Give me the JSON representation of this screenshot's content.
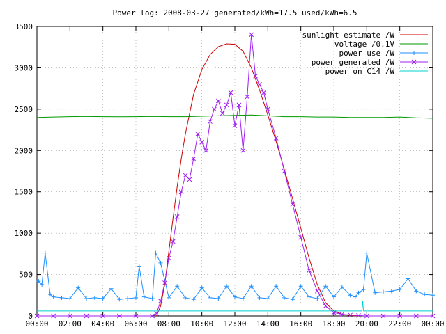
{
  "colors": {
    "sunlight": "#cc0000",
    "voltage": "#009900",
    "power_use": "#1e8fff",
    "power_generated": "#a020f0",
    "power_c14": "#00d0d0",
    "grid": "#a0a0a0"
  },
  "chart_data": {
    "type": "line",
    "title": "Power log: 2008-03-27 generated/kWh=17.5 used/kWh=6.5",
    "xlabel": "",
    "ylabel": "",
    "xlim_hours": [
      0,
      24
    ],
    "ylim": [
      0,
      3500
    ],
    "x_tick_labels": [
      "00:00",
      "02:00",
      "04:00",
      "06:00",
      "08:00",
      "10:00",
      "12:00",
      "14:00",
      "16:00",
      "18:00",
      "20:00",
      "22:00",
      "00:00"
    ],
    "y_tick_labels": [
      "0",
      "500",
      "1000",
      "1500",
      "2000",
      "2500",
      "3000",
      "3500"
    ],
    "y_tick_values": [
      0,
      500,
      1000,
      1500,
      2000,
      2500,
      3000,
      3500
    ],
    "grid": true,
    "legend_position": "top-right",
    "series": [
      {
        "name": "sunlight estimate /W",
        "color_key": "sunlight",
        "marker": "none",
        "x": [
          7.25,
          7.5,
          7.75,
          8.0,
          8.25,
          8.5,
          8.75,
          9.0,
          9.5,
          10.0,
          10.5,
          11.0,
          11.5,
          12.0,
          12.5,
          13.0,
          13.5,
          14.0,
          14.5,
          15.0,
          15.5,
          16.0,
          16.5,
          17.0,
          17.5,
          18.0,
          18.5,
          19.0,
          19.5
        ],
        "y": [
          0,
          120,
          380,
          780,
          1180,
          1560,
          1900,
          2200,
          2680,
          2980,
          3160,
          3255,
          3290,
          3285,
          3200,
          3000,
          2730,
          2430,
          2110,
          1770,
          1420,
          1060,
          700,
          380,
          160,
          60,
          20,
          5,
          0
        ]
      },
      {
        "name": "voltage /0.1V",
        "color_key": "voltage",
        "marker": "none",
        "x": [
          0,
          1,
          2,
          3,
          4,
          5,
          6,
          7,
          8,
          9,
          10,
          11,
          12,
          13,
          14,
          15,
          16,
          17,
          18,
          19,
          20,
          21,
          22,
          23,
          24
        ],
        "y": [
          2400,
          2405,
          2410,
          2412,
          2410,
          2408,
          2410,
          2412,
          2410,
          2410,
          2415,
          2420,
          2425,
          2430,
          2420,
          2410,
          2410,
          2405,
          2405,
          2400,
          2400,
          2400,
          2405,
          2395,
          2390
        ]
      },
      {
        "name": "power use /W",
        "color_key": "power_use",
        "marker": "plus",
        "x": [
          0.1,
          0.3,
          0.5,
          0.8,
          1.0,
          1.5,
          2.0,
          2.5,
          3.0,
          3.5,
          4.0,
          4.5,
          5.0,
          5.5,
          6.0,
          6.2,
          6.5,
          7.0,
          7.2,
          7.5,
          8.0,
          8.5,
          9.0,
          9.5,
          10.0,
          10.5,
          11.0,
          11.5,
          12.0,
          12.5,
          13.0,
          13.5,
          14.0,
          14.5,
          15.0,
          15.5,
          16.0,
          16.5,
          17.0,
          17.5,
          18.0,
          18.5,
          19.0,
          19.3,
          19.5,
          19.8,
          20.0,
          20.5,
          21.0,
          21.5,
          22.0,
          22.5,
          23.0,
          23.5,
          24.0
        ],
        "y": [
          420,
          380,
          760,
          260,
          230,
          220,
          210,
          340,
          210,
          220,
          210,
          330,
          200,
          210,
          220,
          600,
          230,
          210,
          760,
          640,
          220,
          360,
          220,
          200,
          340,
          220,
          210,
          360,
          230,
          210,
          360,
          220,
          210,
          360,
          220,
          200,
          360,
          230,
          210,
          360,
          230,
          350,
          250,
          230,
          280,
          320,
          760,
          280,
          290,
          300,
          320,
          450,
          300,
          260,
          250
        ]
      },
      {
        "name": "power generated /W",
        "color_key": "power_generated",
        "marker": "cross",
        "x": [
          0,
          1,
          2,
          3,
          4,
          5,
          6,
          7.0,
          7.25,
          7.5,
          7.75,
          8.0,
          8.25,
          8.5,
          8.75,
          9.0,
          9.25,
          9.5,
          9.75,
          10.0,
          10.25,
          10.5,
          10.75,
          11.0,
          11.25,
          11.5,
          11.75,
          12.0,
          12.25,
          12.5,
          12.75,
          13.0,
          13.25,
          13.5,
          13.75,
          14.0,
          14.5,
          15.0,
          15.5,
          16.0,
          16.5,
          17.0,
          17.5,
          18.0,
          18.5,
          19.0,
          19.5,
          20.0,
          21,
          22,
          23,
          24
        ],
        "y": [
          0,
          0,
          0,
          0,
          0,
          0,
          0,
          0,
          30,
          180,
          400,
          700,
          900,
          1200,
          1500,
          1700,
          1650,
          1900,
          2200,
          2100,
          2000,
          2350,
          2500,
          2600,
          2450,
          2550,
          2700,
          2300,
          2550,
          2000,
          2650,
          3400,
          2900,
          2800,
          2700,
          2500,
          2150,
          1750,
          1350,
          950,
          550,
          300,
          120,
          40,
          20,
          10,
          5,
          0,
          0,
          0,
          0,
          0
        ]
      },
      {
        "name": "power on C14 /W",
        "color_key": "power_c14",
        "marker": "none",
        "x": [
          0,
          2,
          4,
          6,
          8,
          10,
          12,
          14,
          16,
          18,
          19.7,
          19.75,
          19.8,
          20,
          22,
          24
        ],
        "y": [
          60,
          60,
          60,
          60,
          60,
          60,
          60,
          60,
          60,
          60,
          60,
          180,
          60,
          60,
          60,
          60
        ]
      }
    ]
  }
}
